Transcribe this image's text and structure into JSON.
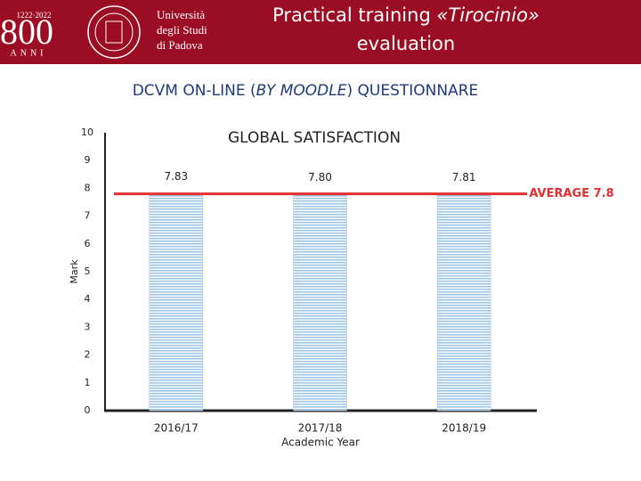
{
  "header": {
    "logo_number": "800",
    "logo_years": "1222·2022",
    "logo_word": "ANNI",
    "university": [
      "Università",
      "degli Studi",
      "di Padova"
    ],
    "title_lines": [
      [
        "Practical training ",
        "«Tirocinio»"
      ],
      [
        "evaluation"
      ]
    ],
    "subtitle": [
      "DCVM ON-LINE (",
      "BY MOODLE",
      ") QUESTIONNARE"
    ]
  },
  "chart_data": {
    "type": "bar",
    "title": "GLOBAL SATISFACTION",
    "categories": [
      "2016/17",
      "2017/18",
      "2018/19"
    ],
    "x_label": "Academic Year",
    "y_label": "Mark",
    "values": [
      7.83,
      7.8,
      7.81
    ],
    "value_labels": [
      "7.83",
      "7.80",
      "7.81"
    ],
    "color": "#9dc3e6",
    "ylim": [
      0,
      10
    ],
    "yticks": [
      0,
      1,
      2,
      3,
      4,
      5,
      6,
      7,
      8,
      9,
      10
    ],
    "grid": false,
    "average": {
      "value": 7.8,
      "label": "AVERAGE 7.8",
      "color": "#e03030"
    }
  }
}
